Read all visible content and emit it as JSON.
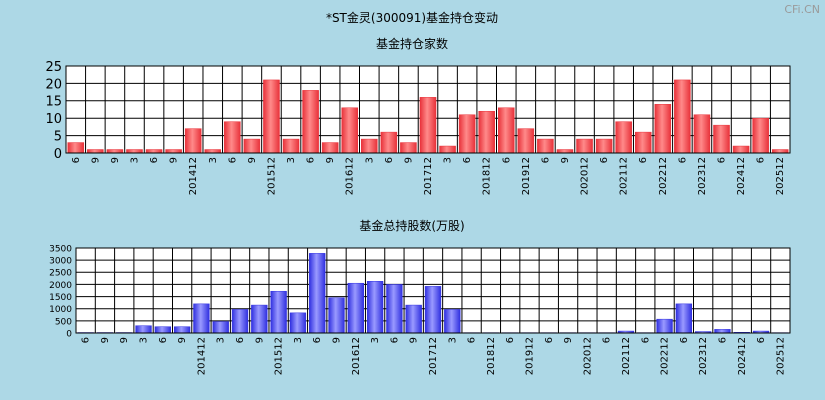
{
  "title": "*ST金灵(300091)基金持仓变动",
  "watermark": "CFi.CN",
  "colors": {
    "background": "#add8e6",
    "plot_bg": "#ffffff",
    "grid": "#000000",
    "bar_red": "#e8323a",
    "bar_red_light": "#ff8a8a",
    "bar_blue": "#3030e0",
    "bar_blue_light": "#9a9aff",
    "watermark": "#9a9a9a"
  },
  "chart_data": [
    {
      "type": "bar",
      "title": "基金持仓家数",
      "xlabel": "",
      "ylabel": "",
      "ylim": [
        0,
        25
      ],
      "yticks": [
        0,
        5,
        10,
        15,
        20,
        25
      ],
      "grid": true,
      "categories": [
        "6",
        "9",
        "9",
        "3",
        "6",
        "9",
        "201412",
        "3",
        "6",
        "9",
        "201512",
        "3",
        "6",
        "9",
        "201612",
        "3",
        "6",
        "9",
        "201712",
        "3",
        "6",
        "201812",
        "6",
        "201912",
        "6",
        "9",
        "202012",
        "6",
        "202112",
        "6",
        "202212",
        "6",
        "202312",
        "6",
        "202412",
        "6",
        "202512"
      ],
      "values": [
        3,
        1,
        1,
        1,
        1,
        1,
        7,
        1,
        9,
        4,
        21,
        4,
        18,
        3,
        13,
        4,
        6,
        3,
        16,
        2,
        11,
        12,
        13,
        7,
        4,
        1,
        4,
        4,
        9,
        6,
        14,
        21,
        11,
        8,
        2,
        10,
        1
      ]
    },
    {
      "type": "bar",
      "title": "基金总持股数(万股)",
      "xlabel": "",
      "ylabel": "",
      "ylim": [
        0,
        3500
      ],
      "yticks": [
        0,
        500,
        1000,
        1500,
        2000,
        2500,
        3000,
        3500
      ],
      "grid": true,
      "categories": [
        "6",
        "9",
        "9",
        "3",
        "6",
        "9",
        "201412",
        "3",
        "6",
        "9",
        "201512",
        "3",
        "6",
        "9",
        "201612",
        "3",
        "6",
        "9",
        "201712",
        "3",
        "6",
        "201812",
        "6",
        "201912",
        "6",
        "9",
        "202012",
        "6",
        "202112",
        "6",
        "202212",
        "6",
        "202312",
        "6",
        "202412",
        "6",
        "202512"
      ],
      "values": [
        20,
        20,
        20,
        300,
        260,
        260,
        1200,
        470,
        970,
        1150,
        1720,
        830,
        3280,
        1450,
        2050,
        2130,
        2000,
        1150,
        1920,
        970,
        15,
        15,
        15,
        15,
        15,
        15,
        15,
        15,
        80,
        15,
        570,
        1200,
        60,
        150,
        30,
        80,
        15
      ]
    }
  ]
}
